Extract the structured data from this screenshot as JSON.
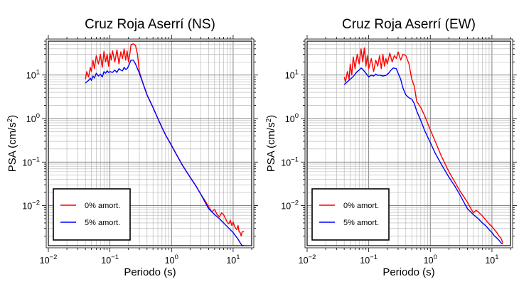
{
  "chart_data": [
    {
      "type": "line",
      "title": "Cruz Roja Aserrí (NS)",
      "xlabel": "Periodo (s)",
      "ylabel": "PSA (cm/s²)",
      "xscale": "log",
      "yscale": "log",
      "xlim": [
        0.01,
        20
      ],
      "ylim": [
        0.0012,
        60
      ],
      "grid": true,
      "legend_position": "bottom-left",
      "xticks": [
        {
          "value": 0.01,
          "base": "10",
          "exp": "−2"
        },
        {
          "value": 0.1,
          "base": "10",
          "exp": "−1"
        },
        {
          "value": 1,
          "base": "10",
          "exp": "0"
        },
        {
          "value": 10,
          "base": "10",
          "exp": "1"
        }
      ],
      "yticks": [
        {
          "value": 10,
          "base": "10",
          "exp": "1"
        },
        {
          "value": 1,
          "base": "10",
          "exp": "0"
        },
        {
          "value": 0.1,
          "base": "10",
          "exp": "−1"
        },
        {
          "value": 0.01,
          "base": "10",
          "exp": "−2"
        }
      ],
      "series": [
        {
          "name": "0% amort.",
          "color": "#ff0000",
          "x": [
            0.04,
            0.042,
            0.045,
            0.048,
            0.05,
            0.053,
            0.056,
            0.06,
            0.065,
            0.07,
            0.075,
            0.08,
            0.085,
            0.09,
            0.095,
            0.1,
            0.105,
            0.11,
            0.12,
            0.13,
            0.14,
            0.15,
            0.16,
            0.17,
            0.18,
            0.19,
            0.2,
            0.21,
            0.22,
            0.24,
            0.26,
            0.28,
            0.3,
            0.35,
            0.4,
            0.5,
            0.6,
            0.7,
            0.8,
            1.0,
            1.2,
            1.5,
            2.0,
            2.5,
            3.0,
            3.5,
            4.0,
            4.5,
            5.0,
            5.5,
            6.0,
            6.5,
            7.0,
            7.5,
            8.0,
            8.5,
            9.0,
            9.5,
            10.0,
            10.5,
            11.0,
            11.5,
            12.0,
            12.5,
            13.0,
            13.5,
            14.0,
            15.0
          ],
          "y": [
            8.0,
            12.0,
            9.0,
            15.0,
            12.0,
            22.0,
            14.0,
            28.0,
            18.0,
            30.0,
            15.0,
            35.0,
            20.0,
            30.0,
            16.0,
            32.0,
            22.0,
            36.0,
            20.0,
            38.0,
            18.0,
            34.0,
            24.0,
            40.0,
            22.0,
            36.0,
            20.0,
            30.0,
            50.0,
            52.0,
            48.0,
            30.0,
            12.0,
            6.0,
            3.5,
            1.8,
            1.0,
            0.62,
            0.42,
            0.24,
            0.15,
            0.085,
            0.045,
            0.028,
            0.018,
            0.013,
            0.0095,
            0.0072,
            0.0082,
            0.0062,
            0.0055,
            0.0068,
            0.0062,
            0.005,
            0.0042,
            0.0038,
            0.0046,
            0.0035,
            0.0042,
            0.0034,
            0.003,
            0.0028,
            0.0035,
            0.0025,
            0.0024,
            0.002,
            0.0025,
            0.0025
          ]
        },
        {
          "name": "5% amort.",
          "color": "#0000ff",
          "x": [
            0.04,
            0.042,
            0.045,
            0.048,
            0.05,
            0.053,
            0.056,
            0.06,
            0.065,
            0.07,
            0.075,
            0.08,
            0.085,
            0.09,
            0.095,
            0.1,
            0.11,
            0.12,
            0.13,
            0.14,
            0.15,
            0.16,
            0.17,
            0.18,
            0.19,
            0.2,
            0.21,
            0.22,
            0.24,
            0.26,
            0.28,
            0.3,
            0.35,
            0.4,
            0.5,
            0.6,
            0.7,
            0.8,
            1.0,
            1.2,
            1.5,
            2.0,
            2.5,
            3.0,
            3.5,
            4.0,
            5.0,
            6.0,
            7.0,
            8.0,
            9.0,
            10.0,
            11.0,
            12.0,
            13.0,
            14.0,
            15.0
          ],
          "y": [
            6.5,
            7.0,
            7.5,
            8.5,
            7.5,
            9.5,
            8.5,
            11.0,
            9.5,
            10.5,
            9.0,
            12.0,
            11.0,
            12.5,
            11.5,
            12.0,
            11.5,
            13.0,
            11.5,
            14.0,
            13.0,
            12.5,
            15.0,
            13.5,
            14.0,
            16.0,
            19.0,
            22.0,
            22.0,
            18.0,
            14.0,
            11.0,
            6.0,
            3.5,
            1.8,
            1.0,
            0.62,
            0.42,
            0.24,
            0.15,
            0.085,
            0.045,
            0.028,
            0.018,
            0.012,
            0.0085,
            0.0062,
            0.005,
            0.004,
            0.0033,
            0.0028,
            0.0024,
            0.002,
            0.0017,
            0.0014,
            0.0012,
            0.0012
          ]
        }
      ]
    },
    {
      "type": "line",
      "title": "Cruz Roja Aserrí (EW)",
      "xlabel": "Periodo (s)",
      "ylabel": "PSA (cm/s²)",
      "xscale": "log",
      "yscale": "log",
      "xlim": [
        0.01,
        20
      ],
      "ylim": [
        0.0012,
        60
      ],
      "grid": true,
      "legend_position": "bottom-left",
      "xticks": [
        {
          "value": 0.01,
          "base": "10",
          "exp": "−2"
        },
        {
          "value": 0.1,
          "base": "10",
          "exp": "−1"
        },
        {
          "value": 1,
          "base": "10",
          "exp": "0"
        },
        {
          "value": 10,
          "base": "10",
          "exp": "1"
        }
      ],
      "yticks": [
        {
          "value": 10,
          "base": "10",
          "exp": "1"
        },
        {
          "value": 1,
          "base": "10",
          "exp": "0"
        },
        {
          "value": 0.1,
          "base": "10",
          "exp": "−1"
        },
        {
          "value": 0.01,
          "base": "10",
          "exp": "−2"
        }
      ],
      "series": [
        {
          "name": "0% amort.",
          "color": "#ff0000",
          "x": [
            0.04,
            0.042,
            0.045,
            0.048,
            0.05,
            0.053,
            0.056,
            0.06,
            0.065,
            0.07,
            0.075,
            0.08,
            0.085,
            0.09,
            0.095,
            0.1,
            0.11,
            0.12,
            0.13,
            0.14,
            0.15,
            0.16,
            0.17,
            0.18,
            0.19,
            0.2,
            0.22,
            0.24,
            0.26,
            0.28,
            0.3,
            0.33,
            0.36,
            0.4,
            0.45,
            0.5,
            0.55,
            0.6,
            0.7,
            0.8,
            1.0,
            1.2,
            1.5,
            2.0,
            2.5,
            3.0,
            3.5,
            4.0,
            4.5,
            5.0,
            5.5,
            6.0,
            7.0,
            8.0,
            9.0,
            10.0,
            11.0,
            12.0,
            13.0,
            14.0,
            15.0
          ],
          "y": [
            9.0,
            7.0,
            12.0,
            8.0,
            18.0,
            10.0,
            26.0,
            14.0,
            30.0,
            18.0,
            40.0,
            20.0,
            42.0,
            16.0,
            28.0,
            14.0,
            24.0,
            12.0,
            22.0,
            16.0,
            28.0,
            14.0,
            30.0,
            16.0,
            24.0,
            18.0,
            32.0,
            20.0,
            28.0,
            24.0,
            34.0,
            22.0,
            30.0,
            28.0,
            18.0,
            8.0,
            5.5,
            2.5,
            1.8,
            1.2,
            0.55,
            0.3,
            0.14,
            0.06,
            0.035,
            0.022,
            0.016,
            0.012,
            0.0088,
            0.0068,
            0.0078,
            0.0072,
            0.0058,
            0.0046,
            0.0038,
            0.0033,
            0.0028,
            0.0024,
            0.002,
            0.0018,
            0.0014
          ]
        },
        {
          "name": "5% amort.",
          "color": "#0000ff",
          "x": [
            0.04,
            0.045,
            0.05,
            0.055,
            0.06,
            0.065,
            0.07,
            0.075,
            0.08,
            0.09,
            0.1,
            0.11,
            0.12,
            0.13,
            0.14,
            0.15,
            0.17,
            0.19,
            0.21,
            0.23,
            0.25,
            0.28,
            0.3,
            0.33,
            0.36,
            0.4,
            0.45,
            0.5,
            0.55,
            0.6,
            0.7,
            0.8,
            1.0,
            1.2,
            1.5,
            2.0,
            2.5,
            3.0,
            3.5,
            4.0,
            5.0,
            6.0,
            7.0,
            8.0,
            9.0,
            10.0,
            11.0,
            12.0,
            13.0,
            14.0,
            15.0
          ],
          "y": [
            6.0,
            7.0,
            8.0,
            9.0,
            10.5,
            12.0,
            13.0,
            14.5,
            13.5,
            11.0,
            9.0,
            10.0,
            9.5,
            10.5,
            9.8,
            10.0,
            9.5,
            9.8,
            11.0,
            13.0,
            14.5,
            14.0,
            11.0,
            8.0,
            5.0,
            3.5,
            3.0,
            2.8,
            2.2,
            1.5,
            0.9,
            0.55,
            0.28,
            0.16,
            0.09,
            0.045,
            0.028,
            0.018,
            0.012,
            0.0085,
            0.0062,
            0.005,
            0.004,
            0.0034,
            0.0028,
            0.0024,
            0.002,
            0.0018,
            0.0016,
            0.0014,
            0.0013
          ]
        }
      ]
    }
  ]
}
